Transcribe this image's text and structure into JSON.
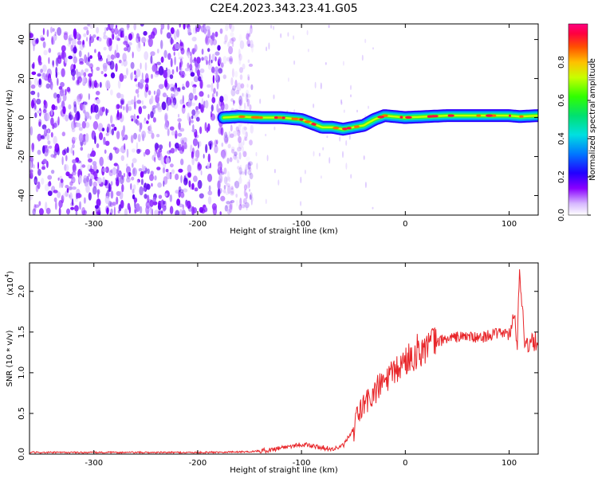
{
  "figure_title": "C2E4.2023.343.23.41.G05",
  "chart_data": [
    {
      "type": "heatmap",
      "xlabel": "Height of straight line (km)",
      "ylabel": "Frequency (Hz)",
      "xlim": [
        -362,
        128
      ],
      "ylim": [
        -50,
        48
      ],
      "xticks": [
        -300,
        -200,
        -100,
        0,
        100
      ],
      "yticks": [
        -40,
        -20,
        0,
        20,
        40
      ],
      "noise_region_x": [
        -362,
        -155
      ],
      "signal_ridge": {
        "x": [
          -175,
          -160,
          -140,
          -120,
          -100,
          -90,
          -80,
          -70,
          -60,
          -50,
          -40,
          -30,
          -20,
          -10,
          0,
          20,
          40,
          60,
          80,
          100,
          110,
          128
        ],
        "freq": [
          0,
          0.5,
          0,
          0,
          -1,
          -3,
          -5,
          -5,
          -6,
          -5,
          -4,
          -1,
          1,
          0.5,
          0,
          0.5,
          1,
          1,
          1,
          1,
          0.5,
          1
        ]
      },
      "colorbar": {
        "label": "Normalized spectral amplitude",
        "range": [
          0.0,
          1.0
        ],
        "ticks": [
          0.0,
          0.2,
          0.4,
          0.6,
          0.8
        ]
      }
    },
    {
      "type": "line",
      "xlabel": "Height of straight line (km)",
      "ylabel": "SNR (10 * v/v)",
      "scale_note": "(x10",
      "scale_exp": "4",
      "scale_close": ")",
      "xlim": [
        -362,
        128
      ],
      "ylim": [
        0,
        2.35
      ],
      "xticks": [
        -300,
        -200,
        -100,
        0,
        100
      ],
      "yticks": [
        0.0,
        0.5,
        1.0,
        1.5,
        2.0
      ],
      "series": [
        {
          "color": "#e8262a",
          "x": [
            -362,
            -300,
            -200,
            -150,
            -130,
            -120,
            -110,
            -100,
            -90,
            -80,
            -70,
            -60,
            -50,
            -45,
            -40,
            -30,
            -20,
            -10,
            0,
            10,
            20,
            30,
            40,
            50,
            60,
            70,
            80,
            90,
            95,
            100,
            105,
            108,
            110,
            115,
            120,
            128
          ],
          "y": [
            0.02,
            0.02,
            0.02,
            0.03,
            0.05,
            0.08,
            0.1,
            0.12,
            0.1,
            0.08,
            0.06,
            0.1,
            0.3,
            0.5,
            0.6,
            0.75,
            0.9,
            1.0,
            1.15,
            1.25,
            1.32,
            1.38,
            1.42,
            1.44,
            1.45,
            1.42,
            1.46,
            1.48,
            1.5,
            1.45,
            1.7,
            1.35,
            2.3,
            1.38,
            1.35,
            1.4
          ]
        }
      ]
    }
  ]
}
